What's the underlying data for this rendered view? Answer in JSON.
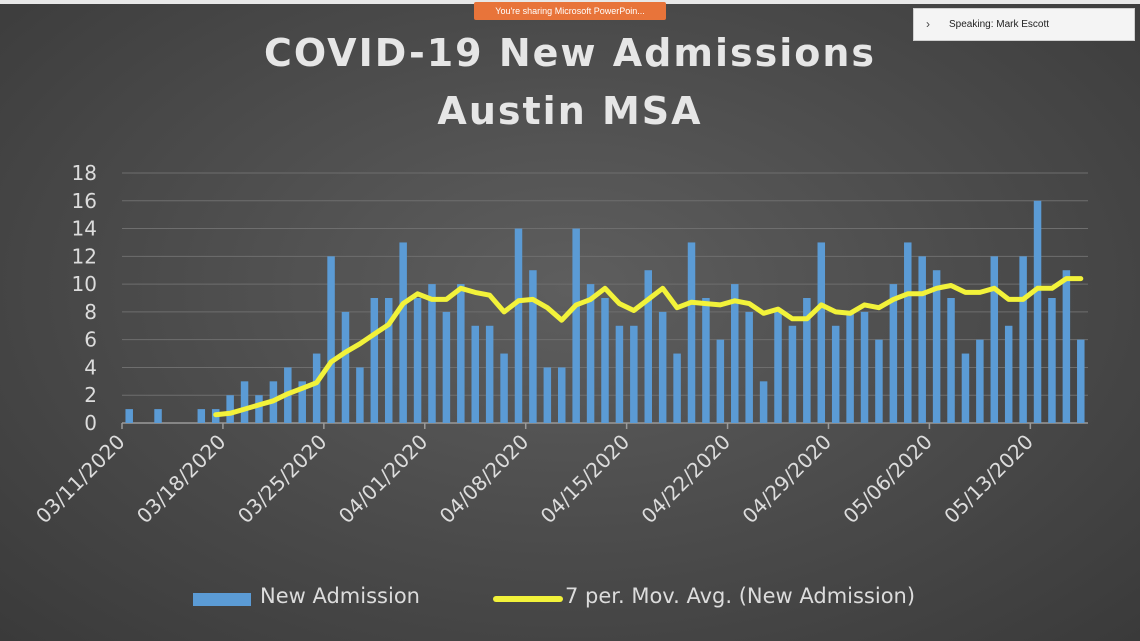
{
  "screen": {
    "share_banner": "You're sharing Microsoft PowerPoin...",
    "speaker_label": "Speaking: Mark Escott",
    "chevron_icon": "chevron-right-icon"
  },
  "chart_data": {
    "type": "bar",
    "title_line1": "COVID-19 New Admissions",
    "title_line2": "Austin MSA",
    "y_ticks": [
      "0",
      "2",
      "4",
      "6",
      "8",
      "10",
      "12",
      "14",
      "16",
      "18"
    ],
    "ylim": [
      0,
      18
    ],
    "x_tick_labels": [
      "03/11/2020",
      "03/18/2020",
      "03/25/2020",
      "04/01/2020",
      "04/08/2020",
      "04/15/2020",
      "04/22/2020",
      "04/29/2020",
      "05/06/2020",
      "05/13/2020"
    ],
    "grid": true,
    "legend_position": "bottom",
    "colors": {
      "bars": "#5b9bd5",
      "line": "#f2f23a",
      "text": "#dcdcdc",
      "grid": "#6e6e6e"
    },
    "series": [
      {
        "name": "New Admission",
        "type": "bar",
        "values": [
          1,
          0,
          1,
          0,
          0,
          1,
          1,
          2,
          3,
          2,
          3,
          4,
          3,
          5,
          12,
          8,
          4,
          9,
          9,
          13,
          9,
          10,
          8,
          10,
          7,
          7,
          5,
          14,
          11,
          4,
          4,
          14,
          10,
          9,
          7,
          7,
          11,
          8,
          5,
          13,
          9,
          6,
          10,
          8,
          3,
          8,
          7,
          9,
          13,
          7,
          8,
          8,
          6,
          10,
          13,
          12,
          11,
          9,
          5,
          6,
          12,
          7,
          12,
          16,
          9,
          11,
          6
        ]
      },
      {
        "name": "7 per. Mov. Avg. (New Admission)",
        "type": "line",
        "values": [
          null,
          null,
          null,
          null,
          null,
          null,
          0.6,
          0.7,
          1.0,
          1.3,
          1.6,
          2.1,
          2.5,
          2.9,
          4.4,
          5.1,
          5.7,
          6.4,
          7.1,
          8.6,
          9.3,
          8.9,
          8.9,
          9.7,
          9.4,
          9.2,
          8.0,
          8.8,
          8.9,
          8.3,
          7.4,
          8.5,
          8.9,
          9.7,
          8.6,
          8.1,
          8.9,
          9.7,
          8.3,
          8.7,
          8.6,
          8.5,
          8.8,
          8.6,
          7.9,
          8.2,
          7.5,
          7.5,
          8.5,
          8.0,
          7.9,
          8.5,
          8.3,
          8.9,
          9.3,
          9.3,
          9.7,
          9.9,
          9.4,
          9.4,
          9.7,
          8.9,
          8.9,
          9.7,
          9.7,
          10.4,
          10.4
        ]
      }
    ]
  }
}
